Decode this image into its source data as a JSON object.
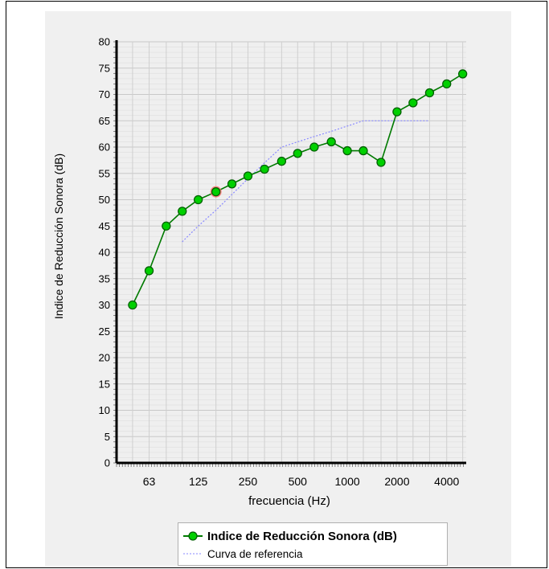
{
  "chart_data": {
    "type": "line",
    "xlabel": "frecuencia (Hz)",
    "ylabel": "Indice de Reducción Sonora (dB)",
    "ylim": [
      0,
      80
    ],
    "y_ticks": [
      "0",
      "5",
      "10",
      "15",
      "20",
      "25",
      "30",
      "35",
      "40",
      "45",
      "50",
      "55",
      "60",
      "65",
      "70",
      "75",
      "80"
    ],
    "x_tick_labels": [
      "63",
      "125",
      "250",
      "500",
      "1000",
      "2000",
      "4000"
    ],
    "grid": true,
    "legend_position": "bottom",
    "x_scale": "log",
    "series": [
      {
        "name": "Indice de Reducción Sonora (dB)",
        "color": "#00c000",
        "marker": "circle",
        "x": [
          50,
          63,
          80,
          100,
          125,
          160,
          200,
          250,
          315,
          400,
          500,
          630,
          800,
          1000,
          1250,
          1600,
          2000,
          2500,
          3150,
          4000,
          5000
        ],
        "y": [
          30,
          36.5,
          45,
          47.8,
          50,
          51.5,
          53,
          54.5,
          55.8,
          57.3,
          58.8,
          60,
          61,
          59.3,
          59.3,
          57.1,
          66.7,
          68.4,
          70.3,
          72,
          73.9
        ]
      },
      {
        "name": "Curva de referencia",
        "color": "#8a8aff",
        "style": "dotted",
        "x": [
          100,
          125,
          160,
          200,
          250,
          315,
          400,
          500,
          630,
          800,
          1000,
          1250,
          1600,
          2000,
          2500,
          3150
        ],
        "y": [
          42,
          45,
          48,
          51,
          54,
          57,
          60,
          61,
          62,
          63,
          64,
          65,
          65,
          65,
          65,
          65
        ]
      }
    ],
    "highlight_point": {
      "x": 160,
      "y": 51.5,
      "color": "#ff6060"
    }
  }
}
